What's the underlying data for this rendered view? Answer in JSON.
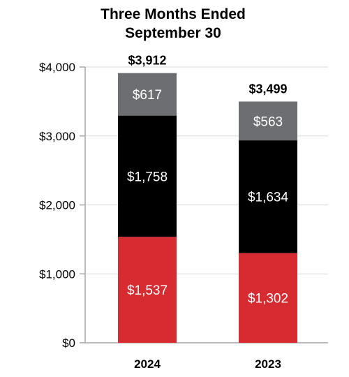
{
  "chart_data": {
    "type": "bar",
    "stacked": true,
    "title_lines": [
      "Three Months Ended",
      "September 30"
    ],
    "categories": [
      "2024",
      "2023"
    ],
    "series": [
      {
        "values": [
          1537,
          1302
        ],
        "labels": [
          "$1,537",
          "$1,302"
        ],
        "color": "#d52b31",
        "label_color": "#ffffff"
      },
      {
        "values": [
          1758,
          1634
        ],
        "labels": [
          "$1,758",
          "$1,634"
        ],
        "color": "#000000",
        "label_color": "#ffffff"
      },
      {
        "values": [
          617,
          563
        ],
        "labels": [
          "$617",
          "$563"
        ],
        "color": "#6d6e71",
        "label_color": "#ffffff"
      }
    ],
    "totals": [
      "$3,912",
      "$3,499"
    ],
    "y_ticks": [
      {
        "value": 0,
        "label": "$0"
      },
      {
        "value": 1000,
        "label": "$1,000"
      },
      {
        "value": 2000,
        "label": "$2,000"
      },
      {
        "value": 3000,
        "label": "$3,000"
      },
      {
        "value": 4000,
        "label": "$4,000"
      }
    ],
    "ylim": [
      0,
      4000
    ],
    "grid": true,
    "gridline_color": "#d9d9d9",
    "axis_color": "#a6a6a6"
  }
}
